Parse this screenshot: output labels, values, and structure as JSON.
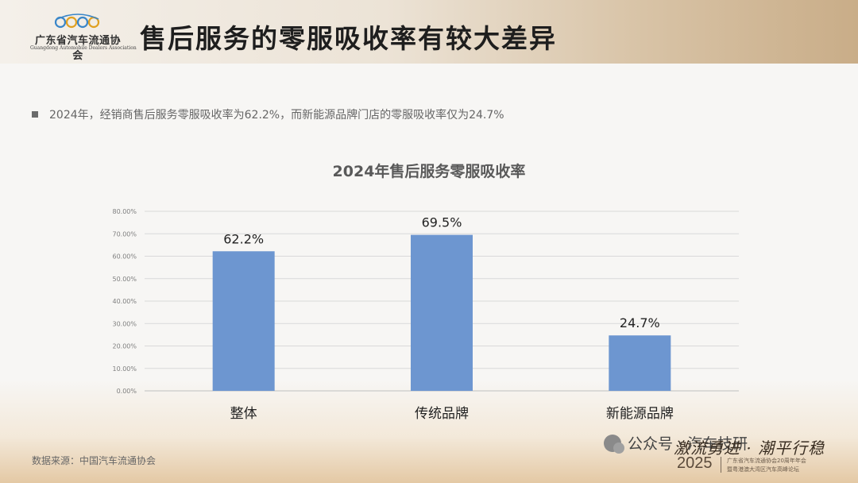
{
  "header": {
    "logo_cn": "广东省汽车流通协会",
    "logo_en": "Guangdong Automobile Dealers Association",
    "title": "售后服务的零服吸收率有较大差异"
  },
  "bullet": {
    "text": "2024年，经销商售后服务零服吸收率为62.2%，而新能源品牌门店的零服吸收率仅为24.7%"
  },
  "chart_data": {
    "type": "bar",
    "title": "2024年售后服务零服吸收率",
    "categories": [
      "整体",
      "传统品牌",
      "新能源品牌"
    ],
    "values": [
      62.2,
      69.5,
      24.7
    ],
    "value_labels": [
      "62.2%",
      "69.5%",
      "24.7%"
    ],
    "yticks": [
      "80.00%",
      "70.00%",
      "60.00%",
      "50.00%",
      "40.00%",
      "30.00%",
      "20.00%",
      "10.00%",
      "0.00%"
    ],
    "ylim": [
      0,
      80
    ],
    "grid": true,
    "bar_color": "#6d96d0"
  },
  "footer": {
    "source": "数据来源：中国汽车流通协会",
    "wechat": "公众号 · 汽车技研",
    "slogan": "激流勇进 · 潮平行稳",
    "year": "2025",
    "sub1": "广东省汽车流通协会20周年年会",
    "sub2": "暨粤港澳大湾区汽车高峰论坛"
  }
}
